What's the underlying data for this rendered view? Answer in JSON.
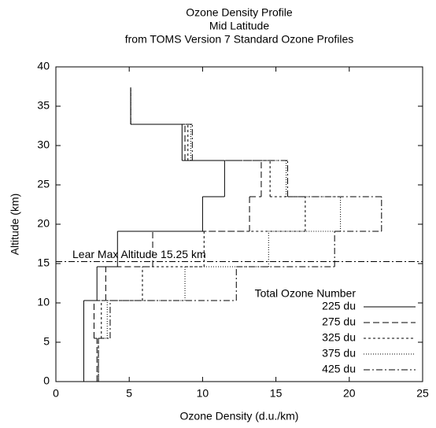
{
  "chart_data": {
    "type": "step",
    "title": [
      "Ozone Density Profile",
      "Mid Latitude",
      "from TOMS Version 7 Standard Ozone Profiles"
    ],
    "xlabel": "Ozone Density (d.u./km)",
    "ylabel": "Altitude (km)",
    "altitude": [
      0,
      5.5,
      10.3,
      14.6,
      19.1,
      23.5,
      28.1,
      32.7,
      37.4
    ],
    "legend_title": "Total Ozone Number",
    "series": [
      {
        "name": "225 du",
        "color": "#000000",
        "values": [
          1.9,
          1.9,
          2.8,
          4.2,
          10.0,
          11.5,
          8.6,
          5.1
        ]
      },
      {
        "name": "275 du",
        "color": "#000000",
        "values": [
          2.8,
          2.6,
          3.4,
          6.6,
          13.2,
          14.0,
          8.8,
          5.1
        ]
      },
      {
        "name": "325 du",
        "color": "#000000",
        "values": [
          2.9,
          3.1,
          5.9,
          10.1,
          17.0,
          14.6,
          9.0,
          5.1
        ]
      },
      {
        "name": "375 du",
        "color": "#000000",
        "values": [
          2.9,
          3.5,
          8.8,
          14.5,
          19.4,
          15.7,
          9.2,
          5.1
        ]
      },
      {
        "name": "425 du",
        "color": "#000000",
        "values": [
          2.9,
          3.7,
          12.3,
          19.0,
          22.2,
          15.8,
          9.3,
          5.1
        ]
      }
    ],
    "annotation": {
      "text": "Lear Max Altitude 15.25 km",
      "y": 15.25
    },
    "xlim": [
      0,
      25
    ],
    "xticks": [
      0,
      5,
      10,
      15,
      20,
      25
    ],
    "ylim": [
      0,
      40
    ],
    "yticks": [
      0,
      5,
      10,
      15,
      20,
      25,
      30,
      35,
      40
    ],
    "legend": "lower right"
  }
}
